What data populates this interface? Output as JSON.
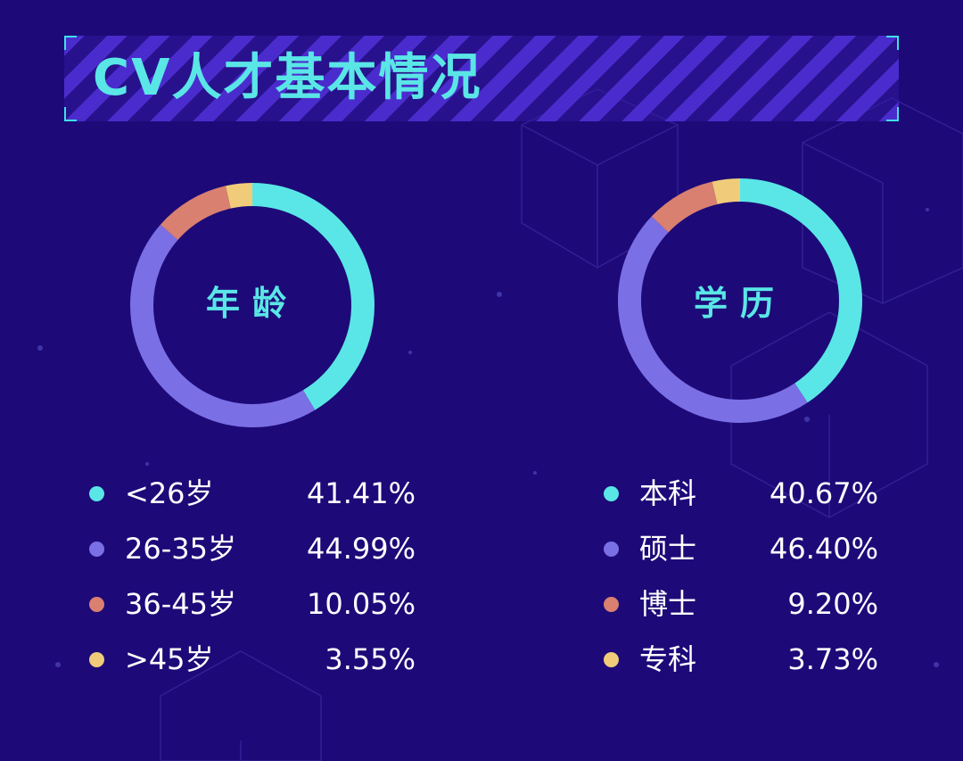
{
  "title": "CV人才基本情况",
  "colors": {
    "background": "#1d0a78",
    "accent": "#5ae6e6",
    "series": [
      "#5ae6e6",
      "#7b6fe6",
      "#d98070",
      "#f0cc7a"
    ]
  },
  "chart_data": [
    {
      "type": "pie",
      "title": "年龄",
      "categories": [
        "<26岁",
        "26-35岁",
        "36-45岁",
        ">45岁"
      ],
      "values": [
        41.41,
        44.99,
        10.05,
        3.55
      ],
      "value_labels": [
        "41.41%",
        "44.99%",
        "10.05%",
        "3.55%"
      ],
      "legend_position": "bottom"
    },
    {
      "type": "pie",
      "title": "学历",
      "categories": [
        "本科",
        "硕士",
        "博士",
        "专科"
      ],
      "values": [
        40.67,
        46.4,
        9.2,
        3.73
      ],
      "value_labels": [
        "40.67%",
        "46.40%",
        "9.20%",
        "3.73%"
      ],
      "legend_position": "bottom"
    }
  ]
}
